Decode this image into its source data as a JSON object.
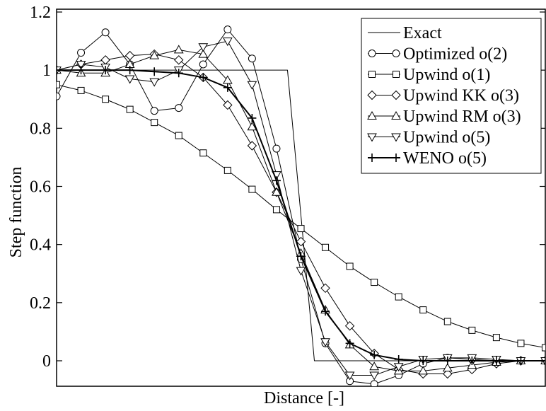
{
  "chart_data": {
    "type": "line",
    "title": "",
    "xlabel": "Distance [-]",
    "ylabel": "Step function",
    "xlim": [
      0,
      1
    ],
    "ylim": [
      -0.09,
      1.2
    ],
    "x_tick_labels": [],
    "y_ticks": [
      0,
      0.2,
      0.4,
      0.6,
      0.8,
      1,
      1.2
    ],
    "y_tick_labels": [
      "0",
      "0.2",
      "0.4",
      "0.6",
      "0.8",
      "1",
      "1.2"
    ],
    "grid": false,
    "legend_position": "top-right",
    "series": [
      {
        "name": "Exact",
        "marker": "none",
        "stroke_width": 1,
        "x": [
          0,
          0.4725,
          0.5275,
          1
        ],
        "y": [
          1,
          1,
          0,
          0
        ]
      },
      {
        "name": "Optimized o(2)",
        "marker": "circle",
        "stroke_width": 1,
        "x": [
          0,
          0.05,
          0.1,
          0.15,
          0.2,
          0.25,
          0.3,
          0.35,
          0.4,
          0.45,
          0.5,
          0.55,
          0.6,
          0.65,
          0.7,
          0.75,
          0.8,
          0.85,
          0.9,
          0.95,
          1.0
        ],
        "y": [
          0.91,
          1.06,
          1.13,
          1.02,
          0.86,
          0.87,
          1.02,
          1.14,
          1.04,
          0.73,
          0.35,
          0.06,
          -0.07,
          -0.08,
          -0.05,
          -0.01,
          0.01,
          0.005,
          0.0,
          0.0,
          0.0
        ]
      },
      {
        "name": "Upwind o(1)",
        "marker": "square",
        "stroke_width": 1,
        "x": [
          0,
          0.05,
          0.1,
          0.15,
          0.2,
          0.25,
          0.3,
          0.35,
          0.4,
          0.45,
          0.5,
          0.55,
          0.6,
          0.65,
          0.7,
          0.75,
          0.8,
          0.85,
          0.9,
          0.95,
          1.0
        ],
        "y": [
          0.95,
          0.93,
          0.9,
          0.865,
          0.82,
          0.775,
          0.715,
          0.655,
          0.59,
          0.52,
          0.455,
          0.39,
          0.325,
          0.27,
          0.22,
          0.175,
          0.135,
          0.105,
          0.08,
          0.06,
          0.045
        ]
      },
      {
        "name": "Upwind KK o(3)",
        "marker": "diamond",
        "stroke_width": 1,
        "x": [
          0,
          0.05,
          0.1,
          0.15,
          0.2,
          0.25,
          0.3,
          0.35,
          0.4,
          0.45,
          0.5,
          0.55,
          0.6,
          0.65,
          0.7,
          0.75,
          0.8,
          0.85,
          0.9,
          0.95,
          1.0
        ],
        "y": [
          1.0,
          1.02,
          1.035,
          1.05,
          1.055,
          1.035,
          0.975,
          0.88,
          0.74,
          0.58,
          0.41,
          0.25,
          0.12,
          0.025,
          -0.03,
          -0.045,
          -0.045,
          -0.03,
          -0.01,
          0.0,
          0.0
        ]
      },
      {
        "name": "Upwind RM o(3)",
        "marker": "triangle-up",
        "stroke_width": 1,
        "x": [
          0,
          0.05,
          0.1,
          0.15,
          0.2,
          0.25,
          0.3,
          0.35,
          0.4,
          0.45,
          0.5,
          0.55,
          0.6,
          0.65,
          0.7,
          0.75,
          0.8,
          0.85,
          0.9,
          0.95,
          1.0
        ],
        "y": [
          1.0,
          0.99,
          0.99,
          1.02,
          1.05,
          1.07,
          1.055,
          0.965,
          0.805,
          0.58,
          0.37,
          0.175,
          0.055,
          -0.02,
          -0.035,
          -0.035,
          -0.025,
          -0.015,
          -0.005,
          0.0,
          0.0
        ]
      },
      {
        "name": "Upwind o(5)",
        "marker": "triangle-down",
        "stroke_width": 1,
        "x": [
          0,
          0.05,
          0.1,
          0.15,
          0.2,
          0.25,
          0.3,
          0.35,
          0.4,
          0.45,
          0.5,
          0.55,
          0.6,
          0.65,
          0.7,
          0.75,
          0.8,
          0.85,
          0.9,
          0.95,
          1.0
        ],
        "y": [
          1.0,
          1.02,
          1.01,
          0.97,
          0.96,
          1.0,
          1.08,
          1.1,
          0.95,
          0.64,
          0.31,
          0.065,
          -0.05,
          -0.05,
          -0.02,
          0.005,
          0.01,
          0.01,
          0.005,
          0.0,
          0.0
        ]
      },
      {
        "name": "WENO o(5)",
        "marker": "plus",
        "stroke_width": 2,
        "x": [
          0,
          0.05,
          0.1,
          0.15,
          0.2,
          0.25,
          0.3,
          0.35,
          0.4,
          0.45,
          0.5,
          0.55,
          0.6,
          0.65,
          0.7,
          0.75,
          0.8,
          0.85,
          0.9,
          0.95,
          1.0
        ],
        "y": [
          1.0,
          1.0,
          1.0,
          1.0,
          0.995,
          0.99,
          0.975,
          0.94,
          0.835,
          0.62,
          0.36,
          0.17,
          0.06,
          0.02,
          0.005,
          0.0,
          0.0,
          0.0,
          0.0,
          0.0,
          0.0
        ]
      }
    ]
  }
}
